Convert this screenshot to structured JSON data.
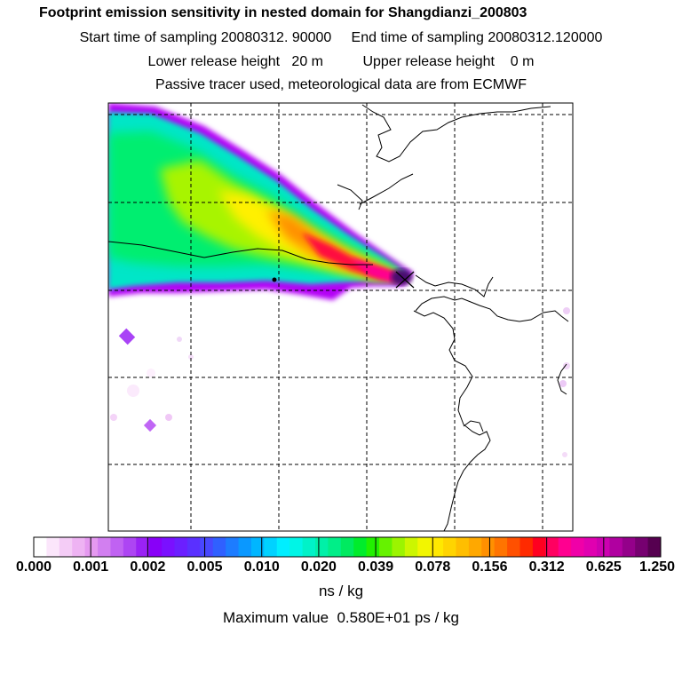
{
  "header": {
    "title": "Footprint emission sensitivity in nested domain for Shangdianzi_200803",
    "sampling_line": "Start time of sampling 20080312. 90000     End time of sampling 20080312.120000",
    "release_line": "Lower release height   20 m          Upper release height    0 m",
    "tracer_line": "Passive tracer used, meteorological data are from ECMWF"
  },
  "legend": {
    "labels": [
      "0.000",
      "0.001",
      "0.002",
      "0.005",
      "0.010",
      "0.020",
      "0.039",
      "0.078",
      "0.156",
      "0.312",
      "0.625",
      "1.250"
    ],
    "unit": "ns / kg",
    "max_value": "Maximum value  0.580E+01 ps / kg",
    "colors": [
      "#ffffff",
      "#fbe6fb",
      "#f4ccf6",
      "#eeb3f3",
      "#e599f0",
      "#d27ff0",
      "#c062f2",
      "#ad45f3",
      "#9a22f5",
      "#8800f8",
      "#7a10ff",
      "#6b1fff",
      "#5a30ff",
      "#4848ff",
      "#3060ff",
      "#1d7cff",
      "#0a98ff",
      "#00b6ff",
      "#00d2ff",
      "#00eeff",
      "#00f5e6",
      "#00f2c8",
      "#00f0a8",
      "#00ee88",
      "#00ea60",
      "#00ec2c",
      "#22f000",
      "#66f200",
      "#9cf400",
      "#ccf600",
      "#f2f600",
      "#ffe800",
      "#ffd400",
      "#ffbe00",
      "#ffa800",
      "#ff9000",
      "#ff7400",
      "#ff5000",
      "#ff2a00",
      "#ff0020",
      "#ff0060",
      "#ff0090",
      "#f000a8",
      "#e000b0",
      "#cc00b0",
      "#b000a0",
      "#94008a",
      "#760070",
      "#560050"
    ]
  },
  "map": {
    "plume_colors": {
      "edge": "#b400f6",
      "outer": "#00e6c8",
      "green": "#00ee70",
      "lime": "#a8f400",
      "yellow": "#fff000",
      "orange": "#ff9000",
      "red": "#ff1040",
      "magenta": "#ff0090",
      "dark": "#4a1070"
    }
  }
}
